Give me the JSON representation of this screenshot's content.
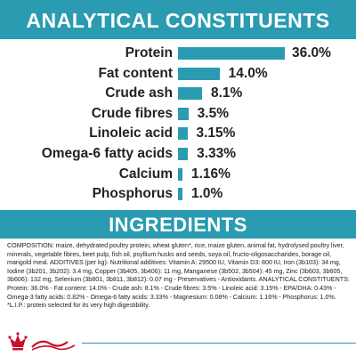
{
  "analytical": {
    "title": "ANALYTICAL CONSTITUENTS",
    "max_percent": 36.0,
    "items": [
      {
        "name": "Protein",
        "value": "36.0%",
        "percent": 36.0
      },
      {
        "name": "Fat content",
        "value": "14.0%",
        "percent": 14.0
      },
      {
        "name": "Crude ash",
        "value": "8.1%",
        "percent": 8.1
      },
      {
        "name": "Crude fibres",
        "value": "3.5%",
        "percent": 3.5
      },
      {
        "name": "Linoleic acid",
        "value": "3.15%",
        "percent": 3.15
      },
      {
        "name": "Omega-6 fatty acids",
        "value": "3.33%",
        "percent": 3.33
      },
      {
        "name": "Calcium",
        "value": "1.16%",
        "percent": 1.16
      },
      {
        "name": "Phosphorus",
        "value": "1.0%",
        "percent": 1.0
      }
    ]
  },
  "ingredients": {
    "title": "INGREDIENTS",
    "composition": "COMPOSITION: maize, dehydrated poultry protein, wheat gluten*, rice, maize gluten, animal fat, hydrolysed poultry liver, minerals, vegetable fibres, beet pulp, fish oil, psyllium husks and seeds, soya oil, fructo-oligosaccharides, borage oil, marigold meal. ADDITIVES (per kg): Nutritional additives: Vitamin A: 29500 IU, Vitamin D3: 800 IU, Iron (3b103): 34 mg, Iodine (3b201, 3b202): 3.4 mg, Copper (3b405, 3b406): 11 mg, Manganese (3b502, 3b504): 45 mg, Zinc (3b603, 3b605, 3b606): 132 mg, Selenium (3b801, 3b811, 3b812): 0.07 mg - Preservatives - Antioxidants. ANALYTICAL CONSTITUENTS: Protein: 36.0% - Fat content: 14.0% - Crude ash: 8.1% - Crude fibres: 3.5% - Linoleic acid: 3.15% - EPA/DHA: 0.43% - Omega-3 fatty acids: 0.82% - Omega-6 fatty acids: 3.33% - Magnesium: 0.08% - Calcium: 1.16% - Phosphorus: 1.0%. *L.I.P.: protein selected for its very high digestibility."
  },
  "brand": {
    "logo_icon": "royal-canin-crown-logo-icon",
    "logo_color": "#c8102e",
    "accent_color": "#2a9bb0"
  }
}
